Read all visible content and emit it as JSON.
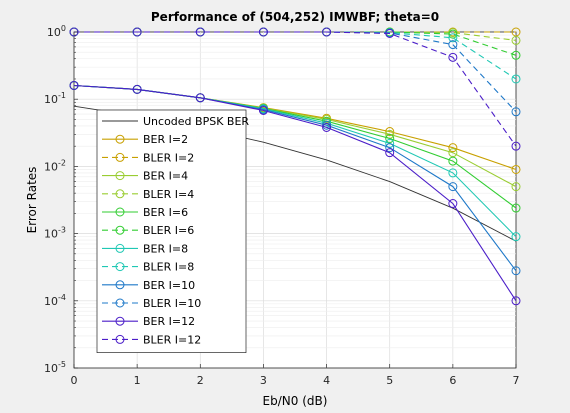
{
  "figure": {
    "background": "#f0f0f0"
  },
  "chart_data": {
    "type": "line",
    "title": "Performance of (504,252) IMWBF; theta=0",
    "xlabel": "Eb/N0 (dB)",
    "ylabel": "Error Rates",
    "x": [
      0,
      1,
      2,
      3,
      4,
      5,
      6,
      7
    ],
    "xlim": [
      0,
      7
    ],
    "ylim": [
      1e-05,
      1
    ],
    "yscale": "log",
    "x_ticks": [
      "0",
      "1",
      "2",
      "3",
      "4",
      "5",
      "6",
      "7"
    ],
    "y_ticks": [
      {
        "base": "10",
        "exp": "0",
        "value": 1
      },
      {
        "base": "10",
        "exp": "-1",
        "value": 0.1
      },
      {
        "base": "10",
        "exp": "-2",
        "value": 0.01
      },
      {
        "base": "10",
        "exp": "-3",
        "value": 0.001
      },
      {
        "base": "10",
        "exp": "-4",
        "value": 0.0001
      },
      {
        "base": "10",
        "exp": "-5",
        "value": 1e-05
      }
    ],
    "grid": true,
    "legend_position": "upper-left inside",
    "series": [
      {
        "name": "Uncoded BPSK BER",
        "style": "solid",
        "marker": "none",
        "color": "#333333",
        "values": [
          0.0786,
          0.0563,
          0.0375,
          0.0229,
          0.0125,
          0.00595,
          0.00239,
          0.00077
        ]
      },
      {
        "name": "BER I=2",
        "style": "solid",
        "marker": "circle",
        "color": "#c8a000",
        "values": [
          0.16,
          0.14,
          0.105,
          0.075,
          0.052,
          0.033,
          0.019,
          0.009
        ]
      },
      {
        "name": "BLER I=2",
        "style": "dashed",
        "marker": "circle",
        "color": "#c8a000",
        "values": [
          1,
          1,
          1,
          1,
          1,
          1,
          1,
          1
        ]
      },
      {
        "name": "BER I=4",
        "style": "solid",
        "marker": "circle",
        "color": "#9acd32",
        "values": [
          0.16,
          0.14,
          0.105,
          0.074,
          0.05,
          0.03,
          0.016,
          0.005
        ]
      },
      {
        "name": "BLER I=4",
        "style": "dashed",
        "marker": "circle",
        "color": "#9acd32",
        "values": [
          1,
          1,
          1,
          1,
          1,
          1,
          0.98,
          0.75
        ]
      },
      {
        "name": "BER I=6",
        "style": "solid",
        "marker": "circle",
        "color": "#32cd32",
        "values": [
          0.16,
          0.14,
          0.105,
          0.073,
          0.047,
          0.026,
          0.012,
          0.0024
        ]
      },
      {
        "name": "BLER I=6",
        "style": "dashed",
        "marker": "circle",
        "color": "#32cd32",
        "values": [
          1,
          1,
          1,
          1,
          1,
          1,
          0.93,
          0.45
        ]
      },
      {
        "name": "BER I=8",
        "style": "solid",
        "marker": "circle",
        "color": "#20c8b4",
        "values": [
          0.16,
          0.14,
          0.105,
          0.072,
          0.044,
          0.022,
          0.008,
          0.0009
        ]
      },
      {
        "name": "BLER I=8",
        "style": "dashed",
        "marker": "circle",
        "color": "#20c8b4",
        "values": [
          1,
          1,
          1,
          1,
          1,
          0.98,
          0.82,
          0.2
        ]
      },
      {
        "name": "BER I=10",
        "style": "solid",
        "marker": "circle",
        "color": "#1e78c8",
        "values": [
          0.16,
          0.14,
          0.105,
          0.07,
          0.041,
          0.019,
          0.005,
          0.00028
        ]
      },
      {
        "name": "BLER I=10",
        "style": "dashed",
        "marker": "circle",
        "color": "#1e78c8",
        "values": [
          1,
          1,
          1,
          1,
          1,
          0.97,
          0.65,
          0.065
        ]
      },
      {
        "name": "BER I=12",
        "style": "solid",
        "marker": "circle",
        "color": "#4b1ec8",
        "values": [
          0.16,
          0.14,
          0.105,
          0.068,
          0.038,
          0.016,
          0.0028,
          0.0001
        ]
      },
      {
        "name": "BLER I=12",
        "style": "dashed",
        "marker": "circle",
        "color": "#4b1ec8",
        "values": [
          1,
          1,
          1,
          1,
          1,
          0.95,
          0.42,
          0.02
        ]
      }
    ]
  }
}
